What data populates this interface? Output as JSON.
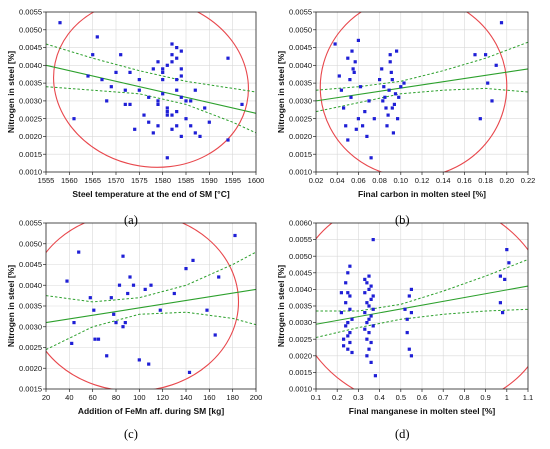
{
  "chart_data": [
    {
      "id": "a",
      "type": "scatter",
      "caption": "(a)",
      "xlabel": "Steel temperature at the end of SM [°C]",
      "ylabel": "Nitrogen in steel [%]",
      "xlim": [
        1555,
        1600
      ],
      "ylim": [
        0.001,
        0.0055
      ],
      "xticks": [
        1555,
        1560,
        1565,
        1570,
        1575,
        1580,
        1585,
        1590,
        1595,
        1600
      ],
      "xtick_labels": [
        "1555",
        "1560",
        "1565",
        "1570",
        "1575",
        "1580",
        "1585",
        "1590",
        "1595",
        "1600"
      ],
      "yticks": [
        0.001,
        0.0015,
        0.002,
        0.0025,
        0.003,
        0.0035,
        0.004,
        0.0045,
        0.005,
        0.0055
      ],
      "ytick_labels": [
        "0.0010",
        "0.0015",
        "0.0020",
        "0.0025",
        "0.0030",
        "0.0035",
        "0.0040",
        "0.0045",
        "0.0050",
        "0.0055"
      ],
      "grid": true,
      "points": [
        [
          1558,
          0.0052
        ],
        [
          1561,
          0.0025
        ],
        [
          1564,
          0.0037
        ],
        [
          1565,
          0.0043
        ],
        [
          1566,
          0.0048
        ],
        [
          1567,
          0.0036
        ],
        [
          1568,
          0.003
        ],
        [
          1569,
          0.0034
        ],
        [
          1570,
          0.0038
        ],
        [
          1571,
          0.0043
        ],
        [
          1572,
          0.0033
        ],
        [
          1572,
          0.0029
        ],
        [
          1573,
          0.0029
        ],
        [
          1573,
          0.0038
        ],
        [
          1574,
          0.0022
        ],
        [
          1575,
          0.0033
        ],
        [
          1575,
          0.0036
        ],
        [
          1576,
          0.0026
        ],
        [
          1577,
          0.0024
        ],
        [
          1577,
          0.0031
        ],
        [
          1578,
          0.0039
        ],
        [
          1578,
          0.0021
        ],
        [
          1579,
          0.0023
        ],
        [
          1579,
          0.0029
        ],
        [
          1579,
          0.0041
        ],
        [
          1579,
          0.003
        ],
        [
          1580,
          0.0032
        ],
        [
          1580,
          0.0039
        ],
        [
          1580,
          0.0038
        ],
        [
          1580,
          0.0036
        ],
        [
          1581,
          0.004
        ],
        [
          1581,
          0.0027
        ],
        [
          1581,
          0.0026
        ],
        [
          1581,
          0.0028
        ],
        [
          1581,
          0.0014
        ],
        [
          1582,
          0.0041
        ],
        [
          1582,
          0.0043
        ],
        [
          1582,
          0.0046
        ],
        [
          1582,
          0.0026
        ],
        [
          1582,
          0.0022
        ],
        [
          1583,
          0.0045
        ],
        [
          1583,
          0.0036
        ],
        [
          1583,
          0.0042
        ],
        [
          1583,
          0.0033
        ],
        [
          1583,
          0.0027
        ],
        [
          1583,
          0.0023
        ],
        [
          1584,
          0.0039
        ],
        [
          1584,
          0.0037
        ],
        [
          1584,
          0.0044
        ],
        [
          1584,
          0.0031
        ],
        [
          1584,
          0.002
        ],
        [
          1585,
          0.0025
        ],
        [
          1585,
          0.003
        ],
        [
          1586,
          0.0023
        ],
        [
          1586,
          0.003
        ],
        [
          1587,
          0.0021
        ],
        [
          1587,
          0.0033
        ],
        [
          1588,
          0.002
        ],
        [
          1589,
          0.0028
        ],
        [
          1590,
          0.0024
        ],
        [
          1594,
          0.0019
        ],
        [
          1594,
          0.0042
        ],
        [
          1597,
          0.0029
        ]
      ],
      "regression": {
        "x": [
          1555,
          1600
        ],
        "y": [
          0.004,
          0.00265
        ]
      },
      "ci_upper": {
        "x": [
          1555,
          1565,
          1575,
          1585,
          1595,
          1600
        ],
        "y": [
          0.0046,
          0.0042,
          0.00385,
          0.00355,
          0.00335,
          0.00325
        ]
      },
      "ci_lower": {
        "x": [
          1555,
          1565,
          1575,
          1585,
          1595,
          1600
        ],
        "y": [
          0.0034,
          0.0033,
          0.0032,
          0.0029,
          0.0024,
          0.0021
        ]
      },
      "ellipse": {
        "cx": 1577.5,
        "cy": 0.0035,
        "rx": 21,
        "ry": 0.00235,
        "angle_deg": 12
      }
    },
    {
      "id": "b",
      "type": "scatter",
      "caption": "(b)",
      "xlabel": "Final carbon in molten steel [%]",
      "ylabel": "Nitrogen in steel [%]",
      "xlim": [
        0.02,
        0.22
      ],
      "ylim": [
        0.001,
        0.0055
      ],
      "xticks": [
        0.02,
        0.04,
        0.06,
        0.08,
        0.1,
        0.12,
        0.14,
        0.16,
        0.18,
        0.2,
        0.22
      ],
      "xtick_labels": [
        "0.02",
        "0.04",
        "0.06",
        "0.08",
        "0.10",
        "0.12",
        "0.14",
        "0.16",
        "0.18",
        "0.20",
        "0.22"
      ],
      "yticks": [
        0.001,
        0.0015,
        0.002,
        0.0025,
        0.003,
        0.0035,
        0.004,
        0.0045,
        0.005,
        0.0055
      ],
      "ytick_labels": [
        "0.0010",
        "0.0015",
        "0.0020",
        "0.0025",
        "0.0030",
        "0.0035",
        "0.0040",
        "0.0045",
        "0.0050",
        "0.0055"
      ],
      "grid": true,
      "points": [
        [
          0.038,
          0.0046
        ],
        [
          0.042,
          0.0037
        ],
        [
          0.044,
          0.0033
        ],
        [
          0.046,
          0.0028
        ],
        [
          0.048,
          0.0023
        ],
        [
          0.05,
          0.0042
        ],
        [
          0.05,
          0.0019
        ],
        [
          0.052,
          0.0036
        ],
        [
          0.053,
          0.0031
        ],
        [
          0.054,
          0.0044
        ],
        [
          0.055,
          0.0039
        ],
        [
          0.056,
          0.0038
        ],
        [
          0.057,
          0.0041
        ],
        [
          0.058,
          0.0022
        ],
        [
          0.06,
          0.0047
        ],
        [
          0.06,
          0.0025
        ],
        [
          0.062,
          0.0034
        ],
        [
          0.064,
          0.0023
        ],
        [
          0.066,
          0.0027
        ],
        [
          0.068,
          0.002
        ],
        [
          0.07,
          0.003
        ],
        [
          0.072,
          0.0014
        ],
        [
          0.075,
          0.0025
        ],
        [
          0.08,
          0.0036
        ],
        [
          0.082,
          0.0039
        ],
        [
          0.083,
          0.003
        ],
        [
          0.084,
          0.0034
        ],
        [
          0.085,
          0.0031
        ],
        [
          0.086,
          0.0028
        ],
        [
          0.087,
          0.0023
        ],
        [
          0.088,
          0.0026
        ],
        [
          0.089,
          0.0033
        ],
        [
          0.09,
          0.0043
        ],
        [
          0.09,
          0.0041
        ],
        [
          0.091,
          0.0038
        ],
        [
          0.092,
          0.0036
        ],
        [
          0.092,
          0.0028
        ],
        [
          0.093,
          0.0021
        ],
        [
          0.094,
          0.0029
        ],
        [
          0.095,
          0.0032
        ],
        [
          0.096,
          0.0044
        ],
        [
          0.097,
          0.0025
        ],
        [
          0.098,
          0.0031
        ],
        [
          0.1,
          0.0034
        ],
        [
          0.103,
          0.0035
        ],
        [
          0.17,
          0.0043
        ],
        [
          0.175,
          0.0025
        ],
        [
          0.18,
          0.0043
        ],
        [
          0.182,
          0.0035
        ],
        [
          0.186,
          0.003
        ],
        [
          0.19,
          0.004
        ],
        [
          0.195,
          0.0052
        ]
      ],
      "regression": {
        "x": [
          0.02,
          0.22
        ],
        "y": [
          0.003,
          0.0039
        ]
      },
      "ci_upper": {
        "x": [
          0.02,
          0.06,
          0.1,
          0.14,
          0.18,
          0.22
        ],
        "y": [
          0.0033,
          0.0034,
          0.00355,
          0.00385,
          0.0042,
          0.00465
        ]
      },
      "ci_lower": {
        "x": [
          0.02,
          0.06,
          0.1,
          0.14,
          0.18,
          0.22
        ],
        "y": [
          0.0027,
          0.00295,
          0.0032,
          0.0033,
          0.00335,
          0.00325
        ]
      },
      "ellipse": {
        "cx": 0.112,
        "cy": 0.0034,
        "rx": 0.088,
        "ry": 0.00255,
        "angle_deg": -6
      }
    },
    {
      "id": "c",
      "type": "scatter",
      "caption": "(c)",
      "xlabel": "Addition of FeMn aff. during SM [kg]",
      "ylabel": "Nitrogen in steel [%]",
      "xlim": [
        20,
        200
      ],
      "ylim": [
        0.0015,
        0.0055
      ],
      "xticks": [
        20,
        40,
        60,
        80,
        100,
        120,
        140,
        160,
        180,
        200
      ],
      "xtick_labels": [
        "20",
        "40",
        "60",
        "80",
        "100",
        "120",
        "140",
        "160",
        "180",
        "200"
      ],
      "yticks": [
        0.0015,
        0.002,
        0.0025,
        0.003,
        0.0035,
        0.004,
        0.0045,
        0.005,
        0.0055
      ],
      "ytick_labels": [
        "0.0015",
        "0.0020",
        "0.0025",
        "0.0030",
        "0.0035",
        "0.0040",
        "0.0045",
        "0.0050",
        "0.0055"
      ],
      "grid": true,
      "points": [
        [
          38,
          0.0041
        ],
        [
          42,
          0.0026
        ],
        [
          44,
          0.0031
        ],
        [
          48,
          0.0048
        ],
        [
          58,
          0.0037
        ],
        [
          61,
          0.0034
        ],
        [
          62,
          0.0027
        ],
        [
          65,
          0.0027
        ],
        [
          72,
          0.0023
        ],
        [
          76,
          0.0037
        ],
        [
          78,
          0.0033
        ],
        [
          80,
          0.0031
        ],
        [
          83,
          0.004
        ],
        [
          86,
          0.0047
        ],
        [
          86,
          0.003
        ],
        [
          88,
          0.0031
        ],
        [
          90,
          0.0038
        ],
        [
          92,
          0.0042
        ],
        [
          95,
          0.004
        ],
        [
          100,
          0.0022
        ],
        [
          105,
          0.0039
        ],
        [
          108,
          0.0021
        ],
        [
          110,
          0.004
        ],
        [
          118,
          0.0034
        ],
        [
          130,
          0.0038
        ],
        [
          140,
          0.0044
        ],
        [
          143,
          0.0019
        ],
        [
          146,
          0.0046
        ],
        [
          158,
          0.0034
        ],
        [
          165,
          0.0028
        ],
        [
          168,
          0.0042
        ],
        [
          182,
          0.0052
        ]
      ],
      "regression": {
        "x": [
          20,
          200
        ],
        "y": [
          0.0031,
          0.0039
        ]
      },
      "ci_upper": {
        "x": [
          20,
          60,
          100,
          140,
          180,
          200
        ],
        "y": [
          0.00375,
          0.0036,
          0.0037,
          0.004,
          0.0045,
          0.0048
        ]
      },
      "ci_lower": {
        "x": [
          20,
          60,
          100,
          140,
          180,
          200
        ],
        "y": [
          0.00245,
          0.003,
          0.0033,
          0.00335,
          0.0032,
          0.00305
        ]
      },
      "ellipse": {
        "cx": 95,
        "cy": 0.0036,
        "rx": 90,
        "ry": 0.00215,
        "angle_deg": 0
      }
    },
    {
      "id": "d",
      "type": "scatter",
      "caption": "(d)",
      "xlabel": "Final manganese in molten steel [%]",
      "ylabel": "Nitrogen in steel [%]",
      "xlim": [
        0.1,
        1.1
      ],
      "ylim": [
        0.001,
        0.006
      ],
      "xticks": [
        0.1,
        0.2,
        0.3,
        0.4,
        0.5,
        0.6,
        0.7,
        0.8,
        0.9,
        1.0,
        1.1
      ],
      "xtick_labels": [
        "0.1",
        "0.2",
        "0.3",
        "0.4",
        "0.5",
        "0.6",
        "0.7",
        "0.8",
        "0.9",
        "1",
        "1.1"
      ],
      "yticks": [
        0.001,
        0.0015,
        0.002,
        0.0025,
        0.003,
        0.0035,
        0.004,
        0.0045,
        0.005,
        0.0055,
        0.006
      ],
      "ytick_labels": [
        "0.0010",
        "0.0015",
        "0.0020",
        "0.0025",
        "0.0030",
        "0.0035",
        "0.0040",
        "0.0045",
        "0.0050",
        "0.0055",
        "0.0060"
      ],
      "grid": true,
      "points": [
        [
          0.22,
          0.0039
        ],
        [
          0.22,
          0.0033
        ],
        [
          0.23,
          0.0025
        ],
        [
          0.23,
          0.0023
        ],
        [
          0.24,
          0.0042
        ],
        [
          0.24,
          0.0036
        ],
        [
          0.24,
          0.0029
        ],
        [
          0.25,
          0.0045
        ],
        [
          0.25,
          0.0039
        ],
        [
          0.25,
          0.003
        ],
        [
          0.25,
          0.0026
        ],
        [
          0.25,
          0.0022
        ],
        [
          0.26,
          0.0047
        ],
        [
          0.26,
          0.0038
        ],
        [
          0.26,
          0.0034
        ],
        [
          0.26,
          0.0027
        ],
        [
          0.26,
          0.0024
        ],
        [
          0.27,
          0.0031
        ],
        [
          0.27,
          0.0021
        ],
        [
          0.33,
          0.0043
        ],
        [
          0.33,
          0.0039
        ],
        [
          0.33,
          0.0033
        ],
        [
          0.33,
          0.0028
        ],
        [
          0.34,
          0.0042
        ],
        [
          0.34,
          0.0036
        ],
        [
          0.34,
          0.003
        ],
        [
          0.34,
          0.0025
        ],
        [
          0.34,
          0.002
        ],
        [
          0.35,
          0.0044
        ],
        [
          0.35,
          0.004
        ],
        [
          0.35,
          0.0035
        ],
        [
          0.35,
          0.0031
        ],
        [
          0.35,
          0.0027
        ],
        [
          0.35,
          0.0022
        ],
        [
          0.36,
          0.0041
        ],
        [
          0.36,
          0.0037
        ],
        [
          0.36,
          0.0032
        ],
        [
          0.36,
          0.0024
        ],
        [
          0.36,
          0.0018
        ],
        [
          0.37,
          0.0055
        ],
        [
          0.37,
          0.0038
        ],
        [
          0.37,
          0.0034
        ],
        [
          0.37,
          0.0029
        ],
        [
          0.38,
          0.0014
        ],
        [
          0.52,
          0.0034
        ],
        [
          0.53,
          0.0031
        ],
        [
          0.53,
          0.0027
        ],
        [
          0.54,
          0.0038
        ],
        [
          0.54,
          0.0022
        ],
        [
          0.55,
          0.004
        ],
        [
          0.55,
          0.0033
        ],
        [
          0.55,
          0.002
        ],
        [
          0.97,
          0.0044
        ],
        [
          0.97,
          0.0036
        ],
        [
          0.98,
          0.0033
        ],
        [
          0.99,
          0.0043
        ],
        [
          1.0,
          0.0052
        ],
        [
          1.01,
          0.0048
        ]
      ],
      "regression": {
        "x": [
          0.1,
          1.1
        ],
        "y": [
          0.00295,
          0.0041
        ]
      },
      "ci_upper": {
        "x": [
          0.1,
          0.3,
          0.5,
          0.7,
          0.9,
          1.1
        ],
        "y": [
          0.00335,
          0.00335,
          0.00355,
          0.00395,
          0.0044,
          0.0049
        ]
      },
      "ci_lower": {
        "x": [
          0.1,
          0.3,
          0.5,
          0.7,
          0.9,
          1.1
        ],
        "y": [
          0.00255,
          0.00285,
          0.0031,
          0.00325,
          0.00335,
          0.0034
        ]
      },
      "ellipse": {
        "cx": 0.6,
        "cy": 0.0036,
        "rx": 0.6,
        "ry": 0.0032,
        "angle_deg": 10
      }
    }
  ],
  "colors": {
    "points": "#1f1fd6",
    "regression": "#2ca02c",
    "confidence": "#2ca02c",
    "ellipse": "#e8474c",
    "grid": "#d9d9d9",
    "axis": "#222222"
  }
}
